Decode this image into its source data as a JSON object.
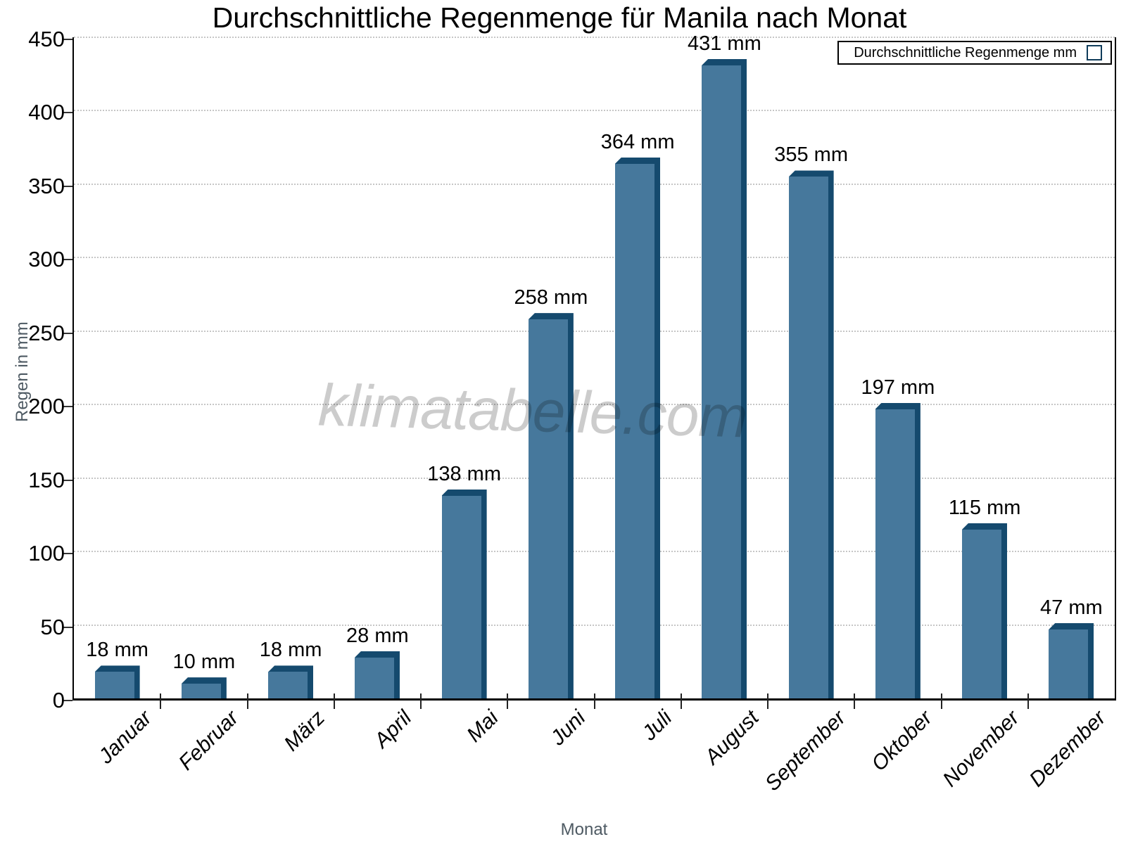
{
  "title": "Durchschnittliche Regenmenge für Manila nach Monat",
  "watermark": "klimatabelle.com",
  "legend": {
    "label": "Durchschnittliche Regenmenge mm"
  },
  "axes": {
    "x_title": "Monat",
    "y_title": "Regen in mm",
    "yticks": [
      0,
      50,
      100,
      150,
      200,
      250,
      300,
      350,
      400,
      450
    ]
  },
  "colors": {
    "bar_face": "#46789c",
    "bar_shadow": "#154a6e",
    "grid": "#c6c6c6",
    "axis": "#000000",
    "axis_title_text": "#4e5a63",
    "watermark_text": "#cccccc"
  },
  "chart_data": {
    "type": "bar",
    "title": "Durchschnittliche Regenmenge für Manila nach Monat",
    "categories": [
      "Januar",
      "Februar",
      "März",
      "April",
      "Mai",
      "Juni",
      "Juli",
      "August",
      "September",
      "Oktober",
      "November",
      "Dezember"
    ],
    "values": [
      18,
      10,
      18,
      28,
      138,
      258,
      364,
      431,
      355,
      197,
      115,
      47
    ],
    "value_labels": [
      "18 mm",
      "10 mm",
      "18 mm",
      "28 mm",
      "138 mm",
      "258 mm",
      "364 mm",
      "431 mm",
      "355 mm",
      "197 mm",
      "115 mm",
      "47 mm"
    ],
    "xlabel": "Monat",
    "ylabel": "Regen in mm",
    "ylim": [
      0,
      450
    ],
    "ytick_step": 50,
    "legend": "Durchschnittliche Regenmenge mm",
    "legend_position": "top-right",
    "grid": "horizontal-dotted",
    "bar_color": "#46789c",
    "bar_shadow_color": "#154a6e"
  }
}
